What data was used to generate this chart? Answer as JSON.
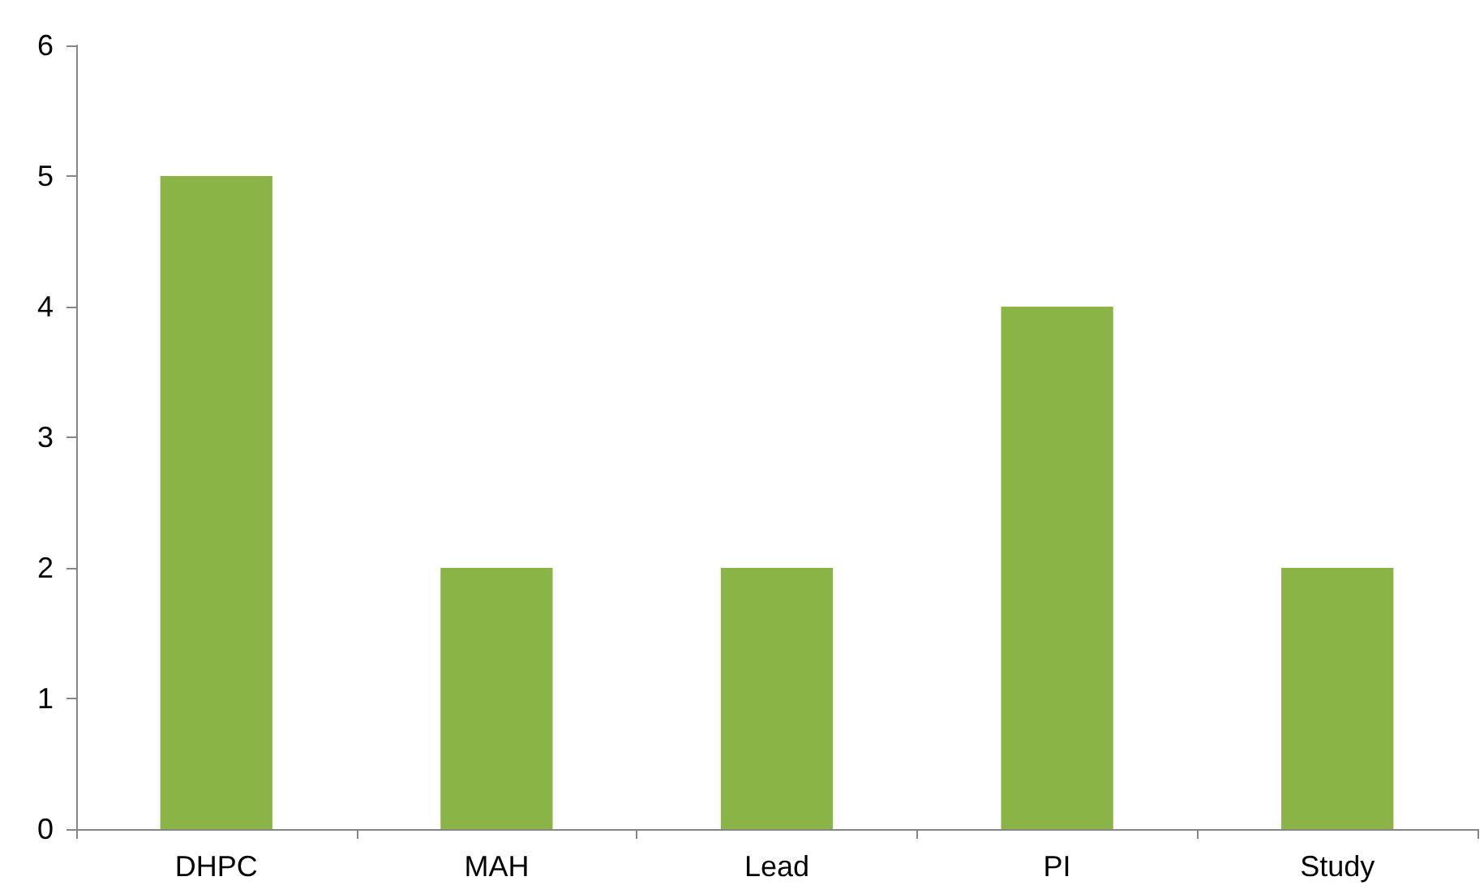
{
  "chart_data": {
    "type": "bar",
    "categories": [
      "DHPC",
      "MAH",
      "Lead",
      "PI",
      "Study"
    ],
    "values": [
      5,
      2,
      2,
      4,
      2
    ],
    "color": "#8ab446",
    "ylim": [
      0,
      6
    ],
    "yticks": [
      0,
      1,
      2,
      3,
      4,
      5,
      6
    ],
    "grid": false
  }
}
